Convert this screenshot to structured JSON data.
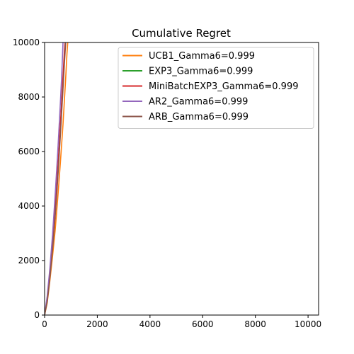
{
  "chart_data": {
    "type": "line",
    "title": "Cumulative Regret",
    "xlabel": "",
    "ylabel": "",
    "xlim": [
      0,
      10400
    ],
    "ylim": [
      0,
      10000
    ],
    "xticks": [
      0,
      2000,
      4000,
      6000,
      8000,
      10000
    ],
    "yticks": [
      0,
      2000,
      4000,
      6000,
      8000,
      10000
    ],
    "grid": false,
    "legend_position": "top-right",
    "series": [
      {
        "name": "UCB1_Gamma6=0.999",
        "color": "#ff7f0e",
        "x": [
          0,
          100,
          200,
          300,
          400,
          500,
          600,
          700,
          800,
          850,
          880
        ],
        "y": [
          0,
          450,
          1250,
          2150,
          3100,
          4300,
          5600,
          7000,
          8700,
          9600,
          10000
        ]
      },
      {
        "name": "EXP3_Gamma6=0.999",
        "color": "#2ca02c",
        "x": [
          0,
          100,
          200,
          300,
          400,
          500,
          600,
          700,
          750,
          790
        ],
        "y": [
          0,
          550,
          1450,
          2550,
          3800,
          5200,
          6800,
          8500,
          9400,
          10000
        ]
      },
      {
        "name": "MiniBatchEXP3_Gamma6=0.999",
        "color": "#d62728",
        "x": [
          0,
          100,
          200,
          300,
          400,
          500,
          600,
          700,
          750,
          780
        ],
        "y": [
          0,
          600,
          1500,
          2600,
          3900,
          5350,
          7000,
          8750,
          9650,
          10000
        ]
      },
      {
        "name": "AR2_Gamma6=0.999",
        "color": "#9467bd",
        "x": [
          0,
          100,
          200,
          300,
          400,
          500,
          600,
          650,
          700
        ],
        "y": [
          0,
          700,
          1700,
          2950,
          4400,
          6000,
          7800,
          8800,
          10000
        ]
      },
      {
        "name": "ARB_Gamma6=0.999",
        "color": "#8c564b",
        "x": [
          0,
          100,
          200,
          300,
          400,
          500,
          600,
          700,
          750,
          800
        ],
        "y": [
          0,
          500,
          1350,
          2400,
          3600,
          5000,
          6600,
          8300,
          9200,
          10000
        ]
      }
    ]
  }
}
